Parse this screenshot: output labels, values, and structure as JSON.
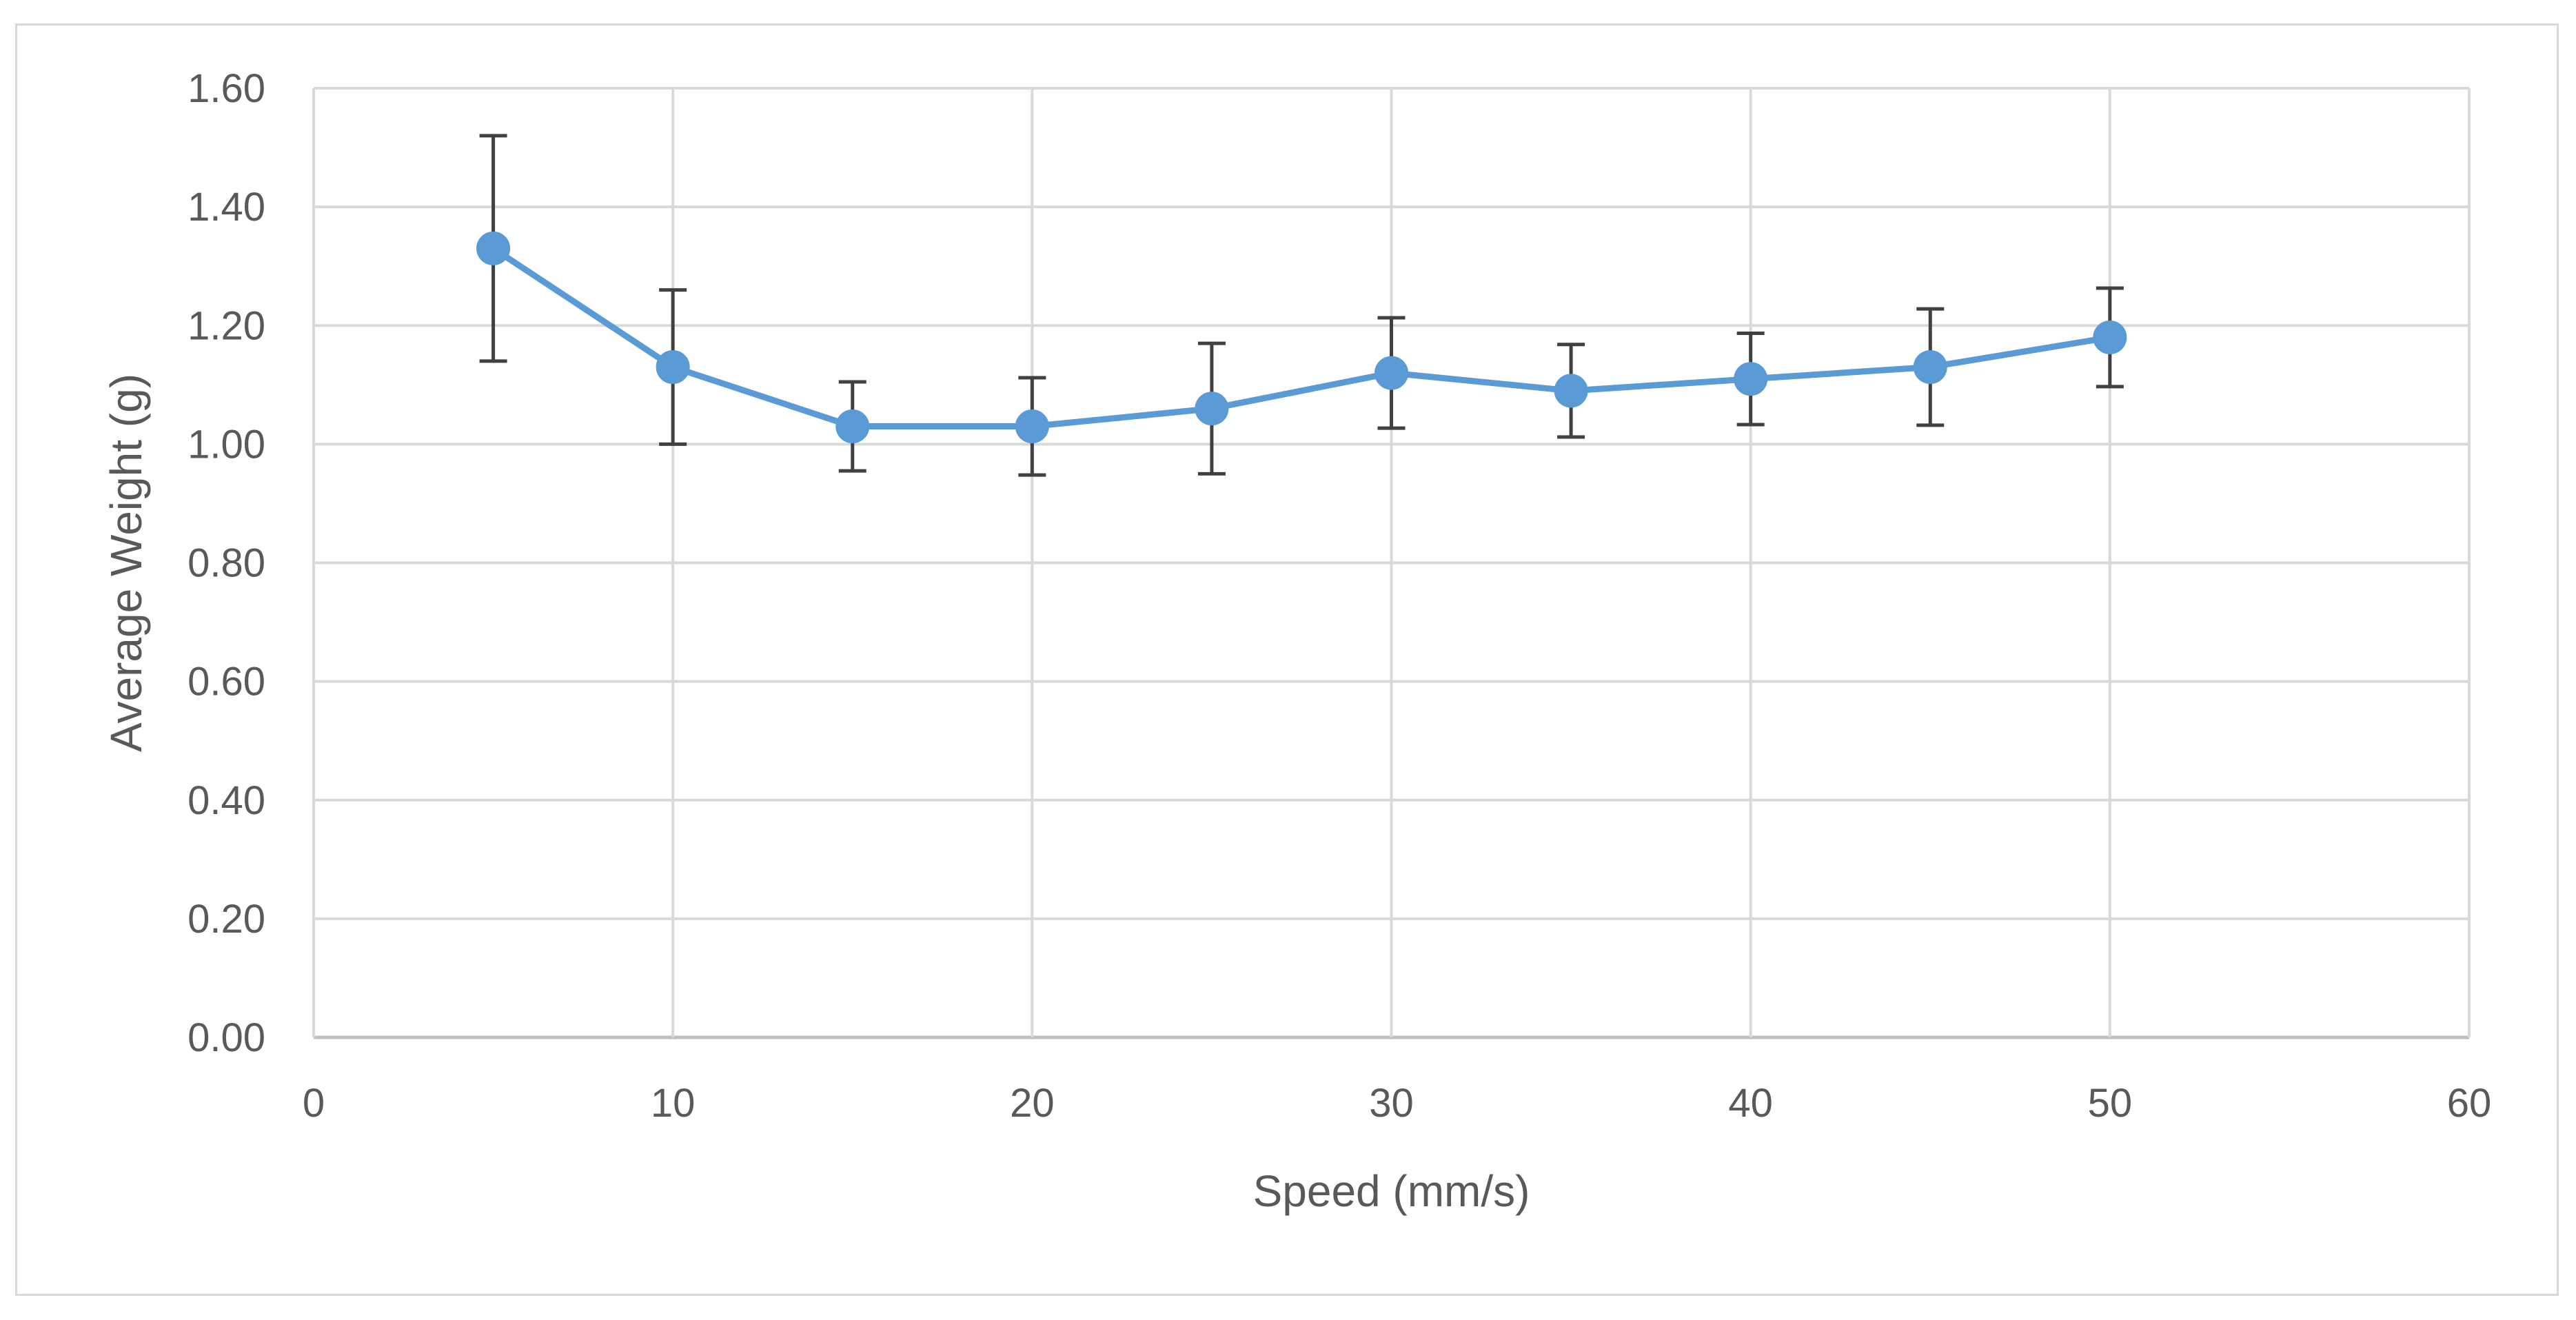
{
  "chart_data": {
    "type": "line",
    "title": "",
    "xlabel": "Speed (mm/s)",
    "ylabel": "Average Weight (g)",
    "xlim": [
      0,
      60
    ],
    "ylim": [
      0,
      1.6
    ],
    "x_ticks": [
      0,
      10,
      20,
      30,
      40,
      50,
      60
    ],
    "y_ticks": [
      0,
      0.2,
      0.4,
      0.6,
      0.8,
      1.0,
      1.2,
      1.4,
      1.6
    ],
    "x_tick_labels": [
      "0",
      "10",
      "20",
      "30",
      "40",
      "50",
      "60"
    ],
    "y_tick_labels": [
      "0.00",
      "0.20",
      "0.40",
      "0.60",
      "0.80",
      "1.00",
      "1.20",
      "1.40",
      "1.60"
    ],
    "grid": true,
    "series": [
      {
        "name": "Average Weight",
        "color": "#5b9bd5",
        "error_bar_color": "#404040",
        "x": [
          5,
          10,
          15,
          20,
          25,
          30,
          35,
          40,
          45,
          50
        ],
        "values": [
          1.33,
          1.13,
          1.03,
          1.03,
          1.06,
          1.12,
          1.09,
          1.11,
          1.13,
          1.18
        ],
        "error": [
          0.19,
          0.13,
          0.075,
          0.082,
          0.11,
          0.093,
          0.078,
          0.077,
          0.098,
          0.083
        ]
      }
    ]
  }
}
